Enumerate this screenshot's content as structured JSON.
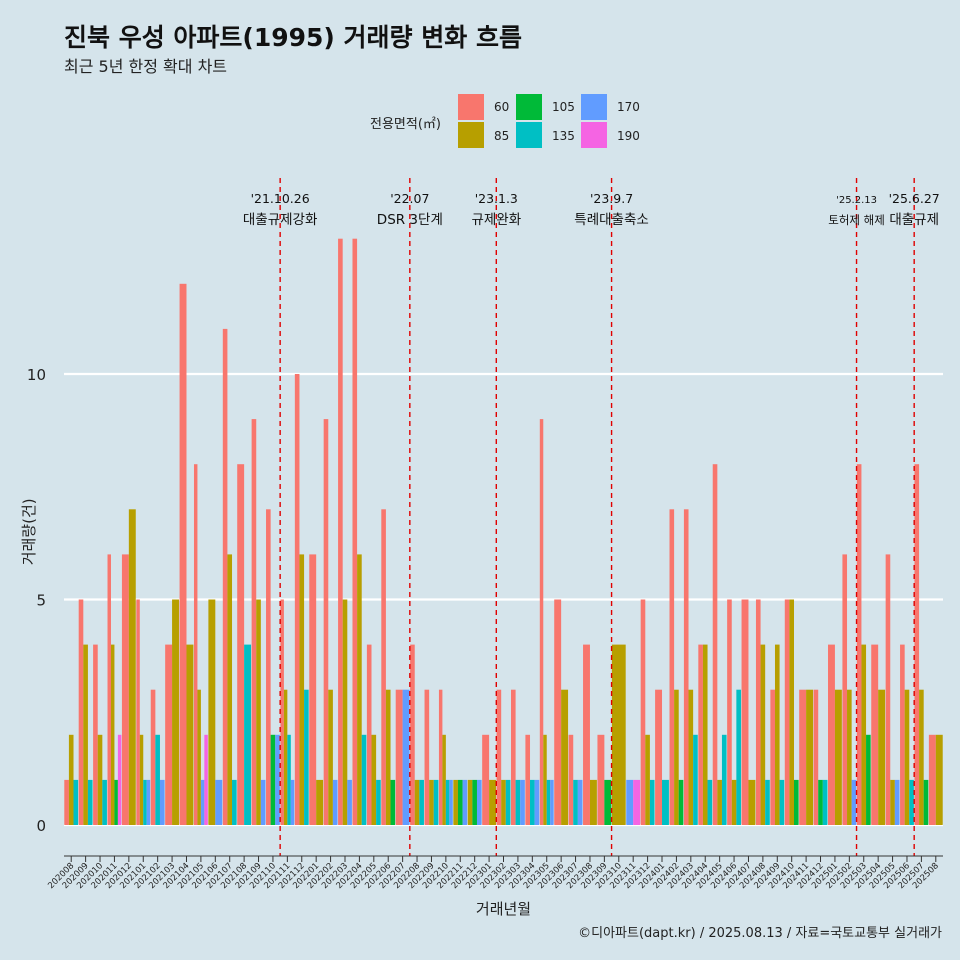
{
  "title": "진북 우성 아파트(1995) 거래량 변화 흐름",
  "subtitle": "최근 5년 한정 확대 차트",
  "caption": "©디아파트(dapt.kr) / 2025.08.13 / 자료=국토교통부 실거래가",
  "legend": {
    "title": "전용면적(㎡)",
    "items": [
      {
        "label": "60",
        "color": "#F8766D"
      },
      {
        "label": "85",
        "color": "#B79F00"
      },
      {
        "label": "105",
        "color": "#00BA38"
      },
      {
        "label": "135",
        "color": "#00BFC4"
      },
      {
        "label": "170",
        "color": "#619CFF"
      },
      {
        "label": "190",
        "color": "#F564E3"
      }
    ]
  },
  "chart_data": {
    "type": "bar",
    "xlabel": "거래년월",
    "ylabel": "거래량(건)",
    "ylim": [
      0,
      13
    ],
    "yticks": [
      0,
      5,
      10
    ],
    "categories": [
      "202008",
      "202009",
      "202010",
      "202011",
      "202012",
      "202101",
      "202102",
      "202103",
      "202104",
      "202105",
      "202106",
      "202107",
      "202108",
      "202109",
      "202110",
      "202111",
      "202112",
      "202201",
      "202202",
      "202203",
      "202204",
      "202205",
      "202206",
      "202207",
      "202208",
      "202209",
      "202210",
      "202211",
      "202212",
      "202301",
      "202302",
      "202303",
      "202304",
      "202305",
      "202306",
      "202307",
      "202308",
      "202309",
      "202310",
      "202311",
      "202312",
      "202401",
      "202402",
      "202403",
      "202404",
      "202405",
      "202406",
      "202407",
      "202408",
      "202409",
      "202410",
      "202411",
      "202412",
      "202501",
      "202502",
      "202503",
      "202504",
      "202505",
      "202506",
      "202507",
      "202508"
    ],
    "series": [
      {
        "name": "60",
        "values": [
          1,
          5,
          4,
          6,
          6,
          5,
          3,
          4,
          12,
          8,
          0,
          11,
          8,
          9,
          7,
          5,
          10,
          6,
          9,
          13,
          13,
          4,
          7,
          3,
          4,
          3,
          3,
          0,
          0,
          2,
          3,
          3,
          2,
          9,
          5,
          2,
          4,
          2,
          0,
          0,
          5,
          3,
          7,
          7,
          4,
          8,
          5,
          5,
          5,
          3,
          5,
          3,
          3,
          4,
          6,
          8,
          4,
          6,
          4,
          8,
          2
        ]
      },
      {
        "name": "85",
        "values": [
          2,
          4,
          2,
          4,
          7,
          2,
          0,
          5,
          4,
          3,
          5,
          6,
          0,
          5,
          0,
          3,
          6,
          1,
          3,
          5,
          6,
          2,
          3,
          0,
          1,
          1,
          2,
          1,
          1,
          1,
          1,
          0,
          0,
          2,
          3,
          0,
          1,
          0,
          4,
          0,
          2,
          0,
          3,
          3,
          4,
          1,
          1,
          1,
          4,
          4,
          5,
          3,
          0,
          3,
          3,
          4,
          3,
          1,
          3,
          3,
          2
        ]
      },
      {
        "name": "105",
        "values": [
          0,
          0,
          0,
          1,
          0,
          0,
          0,
          0,
          0,
          0,
          0,
          0,
          0,
          0,
          2,
          0,
          0,
          0,
          0,
          0,
          0,
          0,
          1,
          0,
          0,
          0,
          0,
          1,
          1,
          0,
          0,
          0,
          0,
          0,
          0,
          0,
          0,
          1,
          0,
          0,
          0,
          0,
          1,
          0,
          0,
          0,
          0,
          0,
          0,
          0,
          1,
          0,
          1,
          0,
          0,
          2,
          0,
          0,
          0,
          1,
          0
        ]
      },
      {
        "name": "135",
        "values": [
          1,
          1,
          1,
          0,
          0,
          1,
          2,
          0,
          0,
          0,
          0,
          1,
          4,
          0,
          0,
          2,
          3,
          0,
          0,
          0,
          2,
          1,
          0,
          0,
          1,
          1,
          1,
          0,
          0,
          0,
          1,
          1,
          1,
          1,
          0,
          1,
          0,
          0,
          0,
          0,
          1,
          1,
          0,
          2,
          1,
          2,
          3,
          0,
          1,
          1,
          0,
          0,
          1,
          0,
          0,
          0,
          0,
          0,
          1,
          0,
          0
        ]
      },
      {
        "name": "170",
        "values": [
          0,
          0,
          0,
          0,
          0,
          1,
          1,
          0,
          0,
          1,
          1,
          0,
          0,
          1,
          2,
          1,
          0,
          0,
          1,
          1,
          0,
          0,
          0,
          3,
          0,
          0,
          1,
          1,
          1,
          0,
          0,
          1,
          1,
          1,
          0,
          1,
          0,
          0,
          0,
          1,
          0,
          0,
          0,
          0,
          0,
          0,
          0,
          0,
          0,
          0,
          0,
          0,
          0,
          0,
          1,
          0,
          0,
          1,
          0,
          0,
          0
        ]
      },
      {
        "name": "190",
        "values": [
          0,
          0,
          0,
          2,
          0,
          0,
          0,
          0,
          0,
          2,
          0,
          0,
          0,
          0,
          0,
          0,
          0,
          0,
          0,
          0,
          0,
          0,
          0,
          0,
          0,
          0,
          0,
          0,
          0,
          0,
          0,
          0,
          0,
          0,
          0,
          0,
          0,
          0,
          0,
          1,
          0,
          0,
          0,
          0,
          0,
          0,
          0,
          0,
          0,
          0,
          0,
          0,
          0,
          0,
          0,
          0,
          0,
          0,
          0,
          0,
          0
        ]
      }
    ],
    "annotations": [
      {
        "after": "202110",
        "line1": "'21.10.26",
        "line2": "대출규제강화"
      },
      {
        "after": "202207",
        "line1": "'22.07",
        "line2": "DSR 3단계"
      },
      {
        "after": "202301",
        "line1": "'23.1.3",
        "line2": "규제완화"
      },
      {
        "after": "202309",
        "line1": "'23.9.7",
        "line2": "특례대출축소"
      },
      {
        "after": "202502",
        "line1": "'25.2.13",
        "line2": "토허제 해제"
      },
      {
        "after": "202506",
        "line1": "'25.6.27",
        "line2": "대출규제"
      }
    ],
    "grid": "horizontal major only",
    "legend_position": "top"
  }
}
